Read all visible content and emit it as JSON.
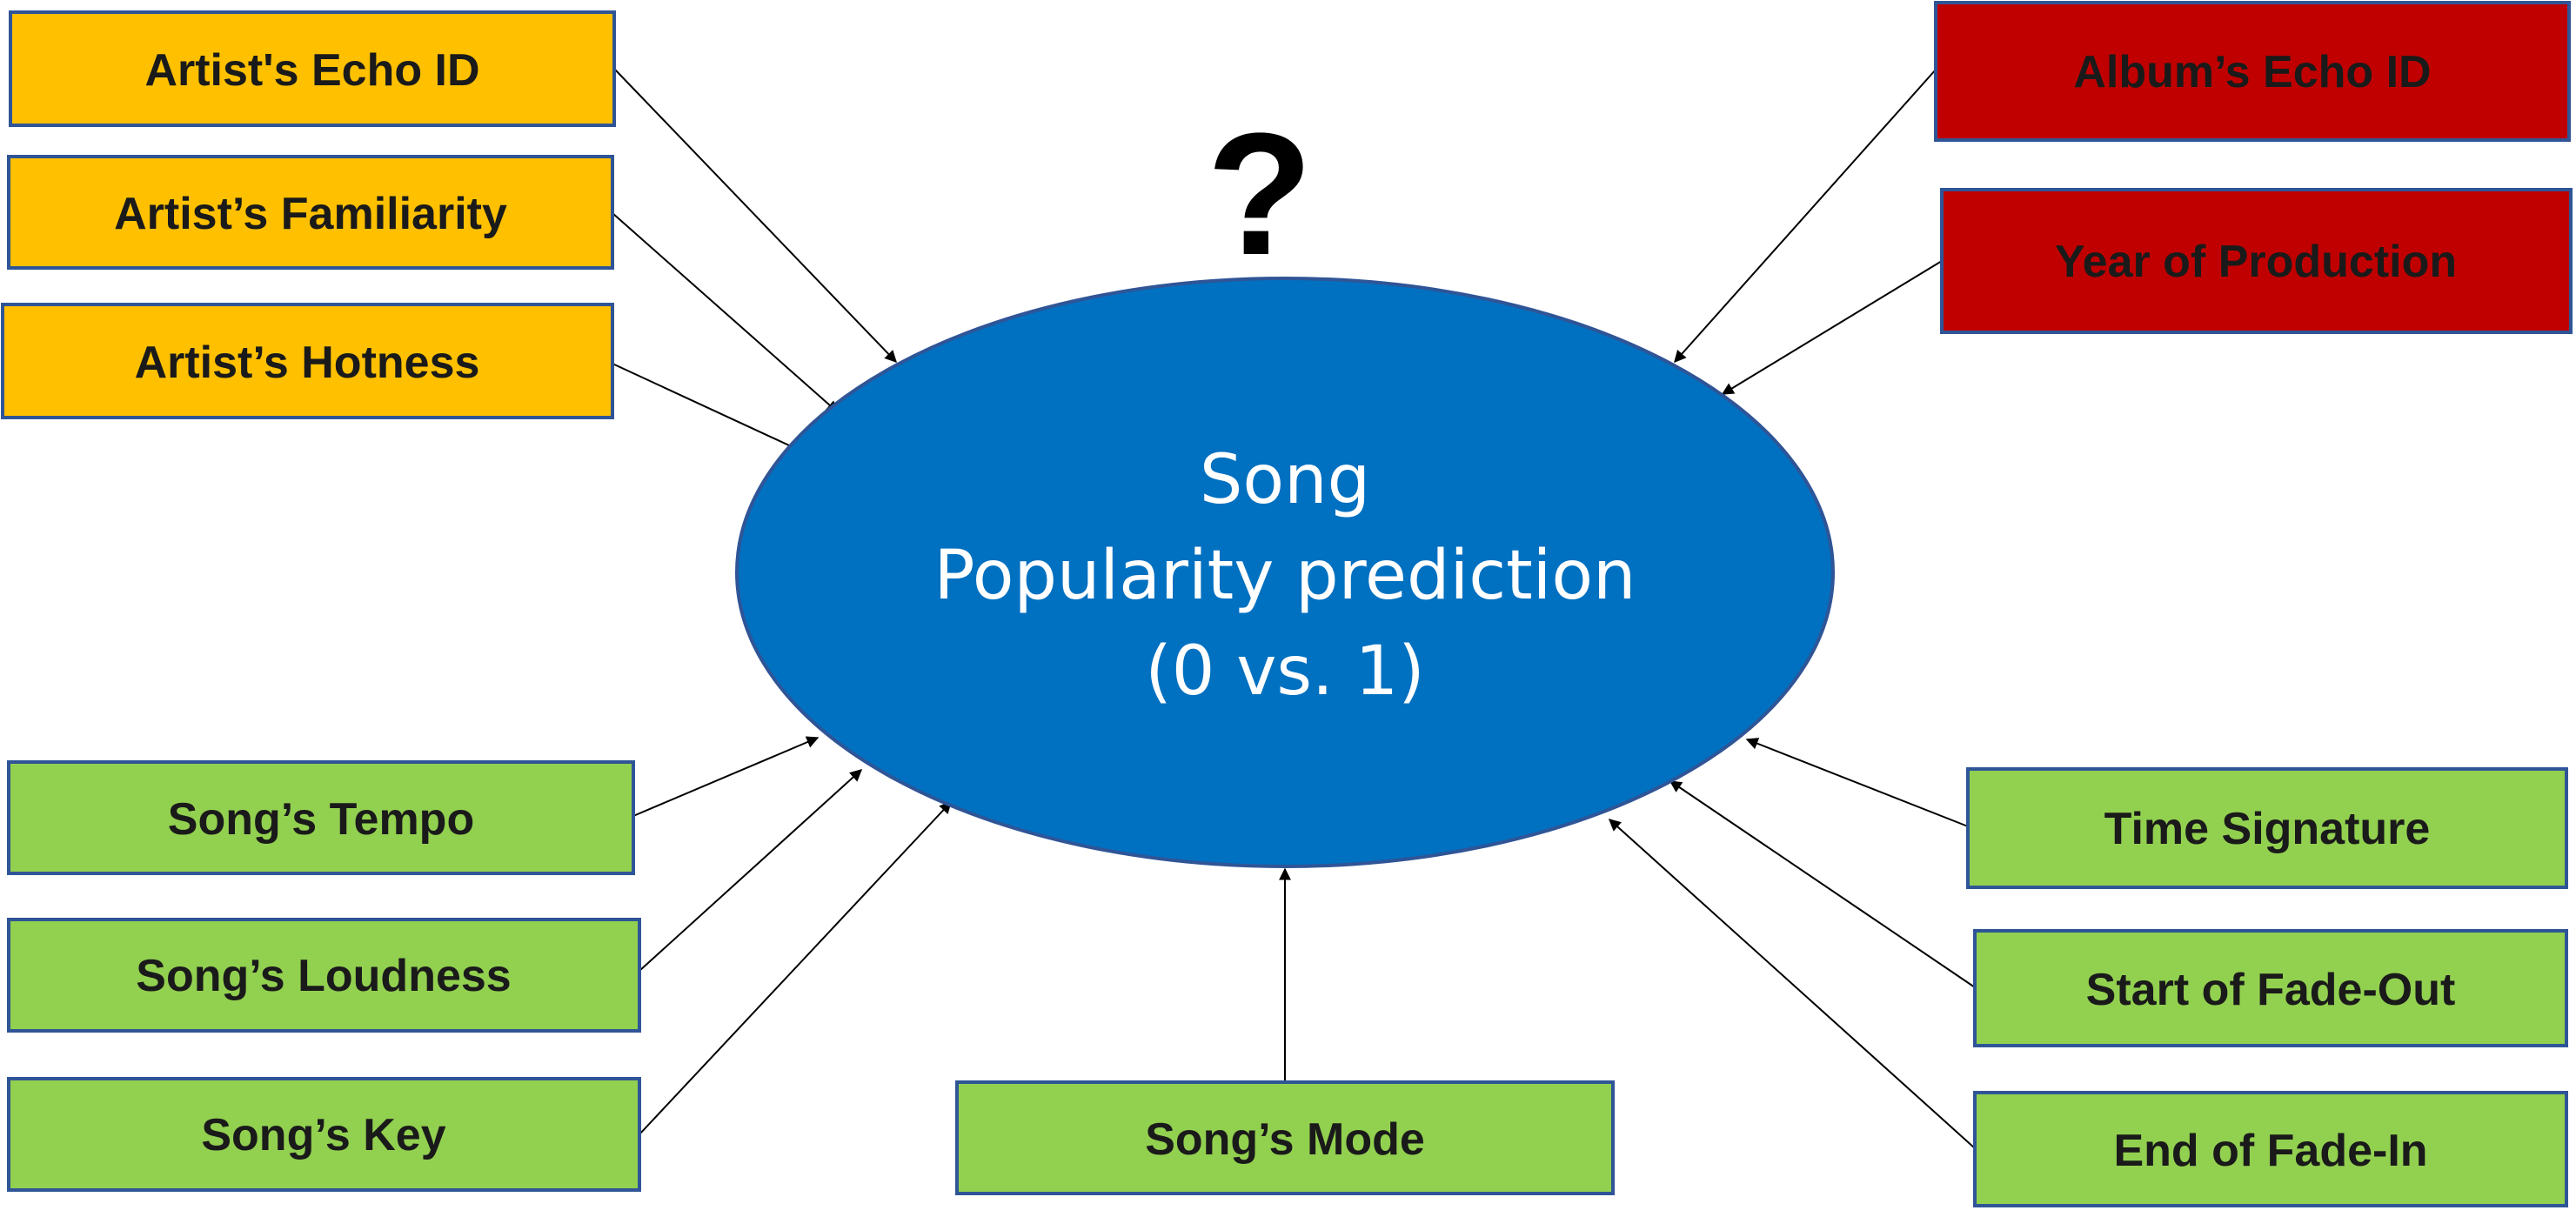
{
  "center": {
    "line1": "Song",
    "line2": "Popularity prediction",
    "line3": "(0 vs. 1)",
    "symbol": "?"
  },
  "colors": {
    "center_fill": "#0070C0",
    "artist_features": "#FFC000",
    "album_features": "#C00000",
    "song_features": "#92D050",
    "border": "#2F5597"
  },
  "features": {
    "artist_echo_id": "Artist's Echo ID",
    "artist_familiarity": "Artist’s Familiarity",
    "artist_hotness": "Artist’s Hotness",
    "album_echo_id": "Album’s Echo ID",
    "year_of_production": "Year of Production",
    "song_tempo": "Song’s Tempo",
    "song_loudness": "Song’s Loudness",
    "song_key": "Song’s Key",
    "song_mode": "Song’s Mode",
    "time_signature": "Time Signature",
    "start_of_fade_out": "Start of Fade-Out",
    "end_of_fade_in": "End of Fade-In"
  }
}
